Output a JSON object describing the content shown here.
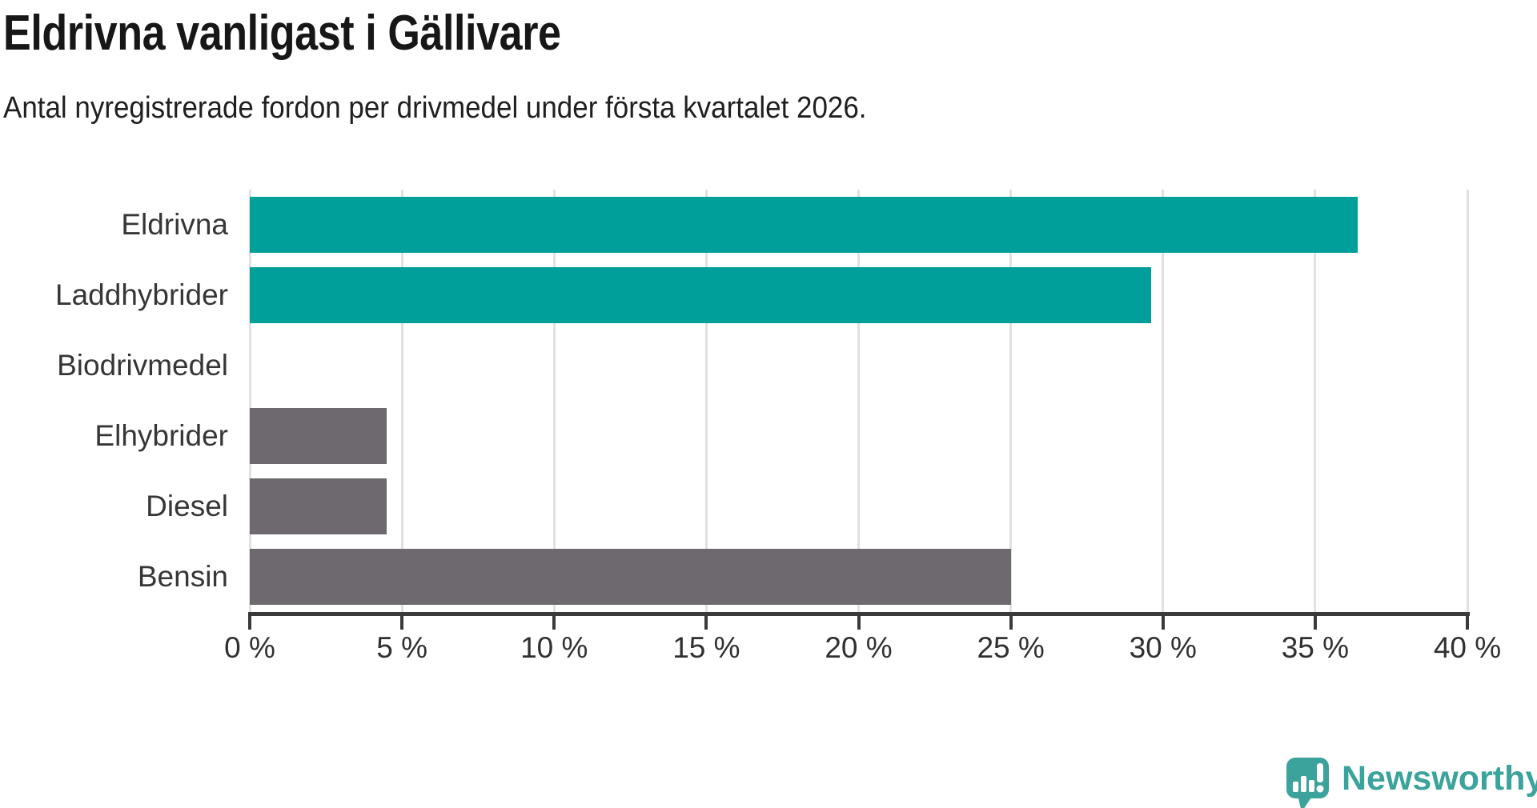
{
  "title": "Eldrivna vanligast i Gällivare",
  "subtitle": "Antal nyregistrerade fordon per drivmedel under första kvartalet 2026.",
  "chart_data": {
    "type": "bar",
    "orientation": "horizontal",
    "title": "Eldrivna vanligast i Gällivare",
    "subtitle": "Antal nyregistrerade fordon per drivmedel under första kvartalet 2026.",
    "categories": [
      "Eldrivna",
      "Laddhybrider",
      "Biodrivmedel",
      "Elhybrider",
      "Diesel",
      "Bensin"
    ],
    "values": [
      36.4,
      29.6,
      0,
      4.5,
      4.5,
      25.0
    ],
    "unit": "%",
    "xlim": [
      0,
      40
    ],
    "x_tick_values": [
      0,
      5,
      10,
      15,
      20,
      25,
      30,
      35,
      40
    ],
    "x_tick_labels": [
      "0 %",
      "5 %",
      "10 %",
      "15 %",
      "20 %",
      "25 %",
      "30 %",
      "35 %",
      "40 %"
    ],
    "grid": true,
    "legend": "none",
    "highlighted": [
      true,
      true,
      false,
      false,
      false,
      false
    ],
    "colors": {
      "highlight": "#009F99",
      "default": "#6D696E",
      "gridline": "#e1e1e1",
      "axis": "#3a3a3a"
    }
  },
  "branding": {
    "logo_text": "Newsworthy",
    "logo_color": "#3BA39B",
    "logo_icon": "bar-chart-speech-bubble-icon"
  }
}
